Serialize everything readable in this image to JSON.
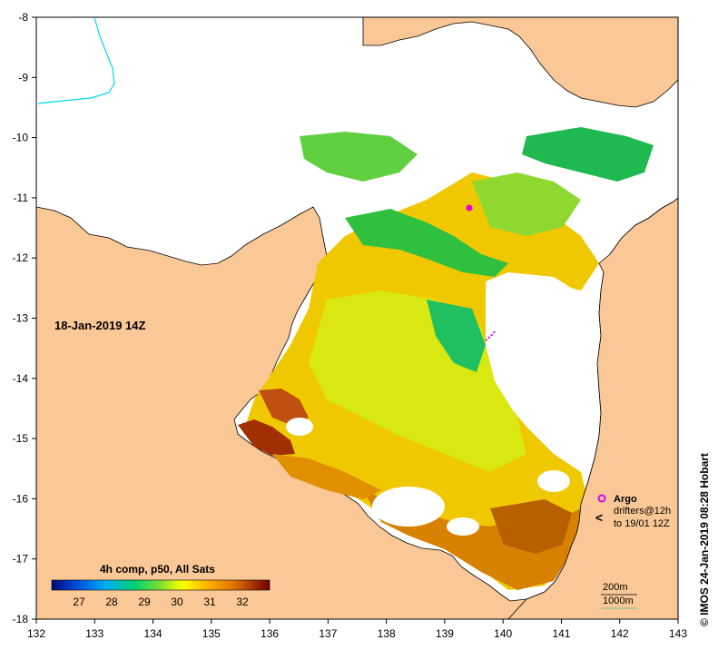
{
  "map": {
    "x_ticks": [
      "132",
      "133",
      "134",
      "135",
      "136",
      "137",
      "138",
      "139",
      "140",
      "141",
      "142",
      "143"
    ],
    "y_ticks": [
      "-8",
      "-9",
      "-10",
      "-11",
      "-12",
      "-13",
      "-14",
      "-15",
      "-16",
      "-17",
      "-18"
    ],
    "date_label": "18-Jan-2019 14Z",
    "colorbar": {
      "title": "4h comp, p50, All Sats",
      "ticks": [
        "27",
        "28",
        "29",
        "30",
        "31",
        "32"
      ],
      "colors": [
        "#000a7a",
        "#0050e0",
        "#00b0f0",
        "#00d070",
        "#7ee030",
        "#ffff00",
        "#ffb000",
        "#e07000",
        "#a03000",
        "#700000"
      ]
    },
    "legend": {
      "argo": "Argo",
      "drifters_line1": "drifters@12h",
      "drifters_line2": "to 19/01 12Z",
      "depth_200": "200m",
      "depth_1000": "1000m"
    },
    "credit": "© IMOS 24-Jan-2019 08:28 Hobart",
    "colors": {
      "land": "#fac896",
      "no_data": "#ffffff",
      "river": "#00d8f0",
      "argo": "#e000e0",
      "drifter": "#e000e0",
      "contour_1000": "#40c0a0"
    }
  }
}
